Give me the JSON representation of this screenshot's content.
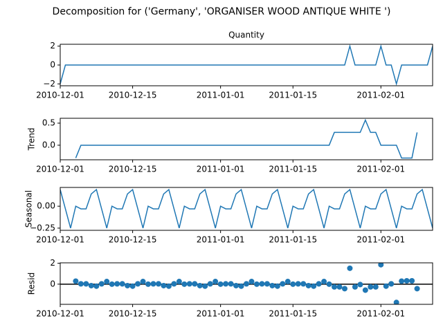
{
  "title": "Decomposition for ('Germany', 'ORGANISER WOOD ANTIQUE WHITE ')",
  "chart_data": {
    "type": "decomposition",
    "x": [
      "2010-12-01",
      "2010-12-02",
      "2010-12-03",
      "2010-12-04",
      "2010-12-05",
      "2010-12-06",
      "2010-12-07",
      "2010-12-08",
      "2010-12-09",
      "2010-12-10",
      "2010-12-11",
      "2010-12-12",
      "2010-12-13",
      "2010-12-14",
      "2010-12-15",
      "2010-12-16",
      "2010-12-17",
      "2010-12-18",
      "2010-12-19",
      "2010-12-20",
      "2010-12-21",
      "2010-12-22",
      "2010-12-23",
      "2010-12-24",
      "2010-12-25",
      "2010-12-26",
      "2010-12-27",
      "2010-12-28",
      "2010-12-29",
      "2010-12-30",
      "2010-12-31",
      "2011-01-01",
      "2011-01-02",
      "2011-01-03",
      "2011-01-04",
      "2011-01-05",
      "2011-01-06",
      "2011-01-07",
      "2011-01-08",
      "2011-01-09",
      "2011-01-10",
      "2011-01-11",
      "2011-01-12",
      "2011-01-13",
      "2011-01-14",
      "2011-01-15",
      "2011-01-16",
      "2011-01-17",
      "2011-01-18",
      "2011-01-19",
      "2011-01-20",
      "2011-01-21",
      "2011-01-22",
      "2011-01-23",
      "2011-01-24",
      "2011-01-25",
      "2011-01-26",
      "2011-01-27",
      "2011-01-28",
      "2011-01-29",
      "2011-01-30",
      "2011-01-31",
      "2011-02-01",
      "2011-02-02",
      "2011-02-03",
      "2011-02-04",
      "2011-02-05",
      "2011-02-06",
      "2011-02-07",
      "2011-02-08",
      "2011-02-09",
      "2011-02-10",
      "2011-02-11"
    ],
    "xlim": [
      "2010-12-01",
      "2011-02-11"
    ],
    "xticks": [
      "2010-12-01",
      "2010-12-15",
      "2011-01-01",
      "2011-01-15",
      "2011-02-01"
    ],
    "panels": [
      {
        "type": "line",
        "title": "Quantity",
        "color": "#1f77b4",
        "ylim": [
          -2.2,
          2.2
        ],
        "yticks": [
          {
            "value": -2,
            "label": "−2"
          },
          0,
          2
        ],
        "values": [
          -2,
          0,
          0,
          0,
          0,
          0,
          0,
          0,
          0,
          0,
          0,
          0,
          0,
          0,
          0,
          0,
          0,
          0,
          0,
          0,
          0,
          0,
          0,
          0,
          0,
          0,
          0,
          0,
          0,
          0,
          0,
          0,
          0,
          0,
          0,
          0,
          0,
          0,
          0,
          0,
          0,
          0,
          0,
          0,
          0,
          0,
          0,
          0,
          0,
          0,
          0,
          0,
          0,
          0,
          0,
          0,
          2,
          0,
          0,
          0,
          0,
          0,
          2,
          0,
          0,
          -2,
          0,
          0,
          0,
          0,
          0,
          0,
          2
        ]
      },
      {
        "type": "line",
        "ylabel": "Trend",
        "color": "#1f77b4",
        "ylim": [
          -0.33,
          0.61
        ],
        "yticks": [
          {
            "value": 0,
            "label": "0.0"
          },
          0.5
        ],
        "values": [
          null,
          null,
          null,
          -0.29,
          0,
          0,
          0,
          0,
          0,
          0,
          0,
          0,
          0,
          0,
          0,
          0,
          0,
          0,
          0,
          0,
          0,
          0,
          0,
          0,
          0,
          0,
          0,
          0,
          0,
          0,
          0,
          0,
          0,
          0,
          0,
          0,
          0,
          0,
          0,
          0,
          0,
          0,
          0,
          0,
          0,
          0,
          0,
          0,
          0,
          0,
          0,
          0,
          0,
          0.29,
          0.29,
          0.29,
          0.29,
          0.29,
          0.29,
          0.57,
          0.29,
          0.29,
          0,
          0,
          0,
          0,
          -0.29,
          -0.29,
          -0.29,
          0.29,
          null,
          null,
          null
        ]
      },
      {
        "type": "line",
        "ylabel": "Seasonal",
        "color": "#1f77b4",
        "ylim": [
          -0.275,
          0.214
        ],
        "yticks": [
          {
            "value": -0.25,
            "label": "−0.25"
          },
          {
            "value": 0,
            "label": "0.00"
          }
        ],
        "values": [
          0.19,
          -0.03,
          -0.25,
          0,
          -0.03,
          -0.03,
          0.14,
          0.19,
          -0.03,
          -0.25,
          0,
          -0.03,
          -0.03,
          0.14,
          0.19,
          -0.03,
          -0.25,
          0,
          -0.03,
          -0.03,
          0.14,
          0.19,
          -0.03,
          -0.25,
          0,
          -0.03,
          -0.03,
          0.14,
          0.19,
          -0.03,
          -0.25,
          0,
          -0.03,
          -0.03,
          0.14,
          0.19,
          -0.03,
          -0.25,
          0,
          -0.03,
          -0.03,
          0.14,
          0.19,
          -0.03,
          -0.25,
          0,
          -0.03,
          -0.03,
          0.14,
          0.19,
          -0.03,
          -0.25,
          0,
          -0.03,
          -0.03,
          0.14,
          0.19,
          -0.03,
          -0.25,
          0,
          -0.03,
          -0.03,
          0.14,
          0.19,
          -0.03,
          -0.25,
          0,
          -0.03,
          -0.03,
          0.14,
          0.19,
          -0.03,
          -0.25
        ]
      },
      {
        "type": "scatter",
        "ylabel": "Resid",
        "color": "#1f77b4",
        "ylim": [
          -1.93,
          2.04
        ],
        "yticks": [
          0,
          2
        ],
        "zero_line": true,
        "values": [
          null,
          null,
          null,
          0.29,
          0.03,
          0.03,
          -0.14,
          -0.19,
          0.03,
          0.25,
          0,
          0.03,
          0.03,
          -0.14,
          -0.19,
          0.03,
          0.25,
          0,
          0.03,
          0.03,
          -0.14,
          -0.19,
          0.03,
          0.25,
          0,
          0.03,
          0.03,
          -0.14,
          -0.19,
          0.03,
          0.25,
          0,
          0.03,
          0.03,
          -0.14,
          -0.19,
          0.03,
          0.25,
          0,
          0.03,
          0.03,
          -0.14,
          -0.19,
          0.03,
          0.25,
          0,
          0.03,
          0.03,
          -0.14,
          -0.19,
          0.03,
          0.25,
          0,
          -0.26,
          -0.26,
          -0.43,
          1.52,
          -0.26,
          -0.04,
          -0.57,
          -0.26,
          -0.26,
          1.86,
          -0.19,
          0.03,
          -1.75,
          0.29,
          0.32,
          0.32,
          -0.43,
          null,
          null,
          null
        ]
      }
    ]
  }
}
